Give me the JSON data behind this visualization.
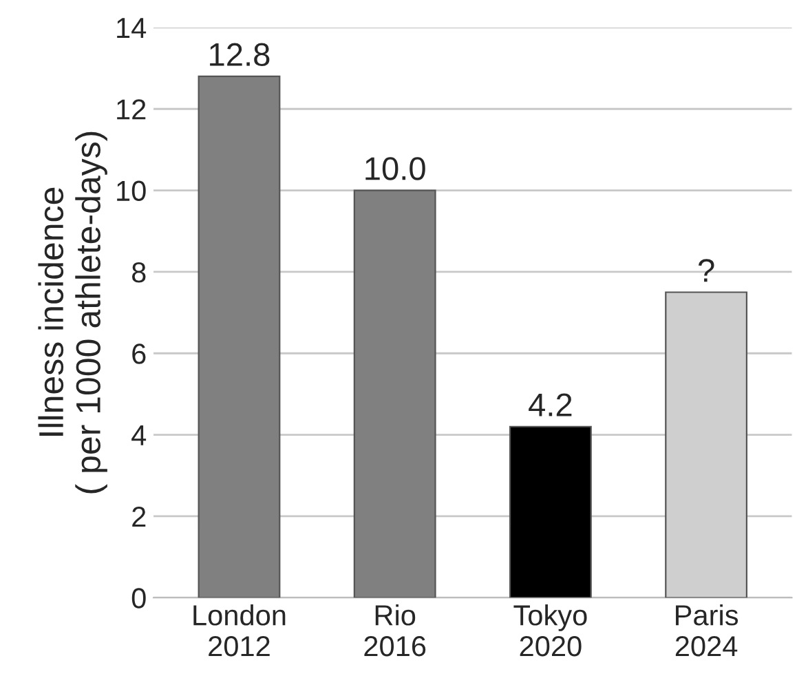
{
  "chart_data": {
    "type": "bar",
    "ylabel": "Illness incidence\n( per 1000 athlete-days)",
    "categories": [
      "London\n2012",
      "Rio\n2016",
      "Tokyo\n2020",
      "Paris\n2024"
    ],
    "values": [
      12.8,
      10.0,
      4.2,
      7.5
    ],
    "colors": [
      "#808080",
      "#808080",
      "#000000",
      "#cfcfcf"
    ],
    "value_labels": [
      "12.8",
      "10.0",
      "4.2",
      "?"
    ],
    "ylim": [
      0,
      14
    ],
    "yticks": [
      0,
      2,
      4,
      6,
      8,
      10,
      12,
      14
    ],
    "grid": "y",
    "legend": false
  }
}
